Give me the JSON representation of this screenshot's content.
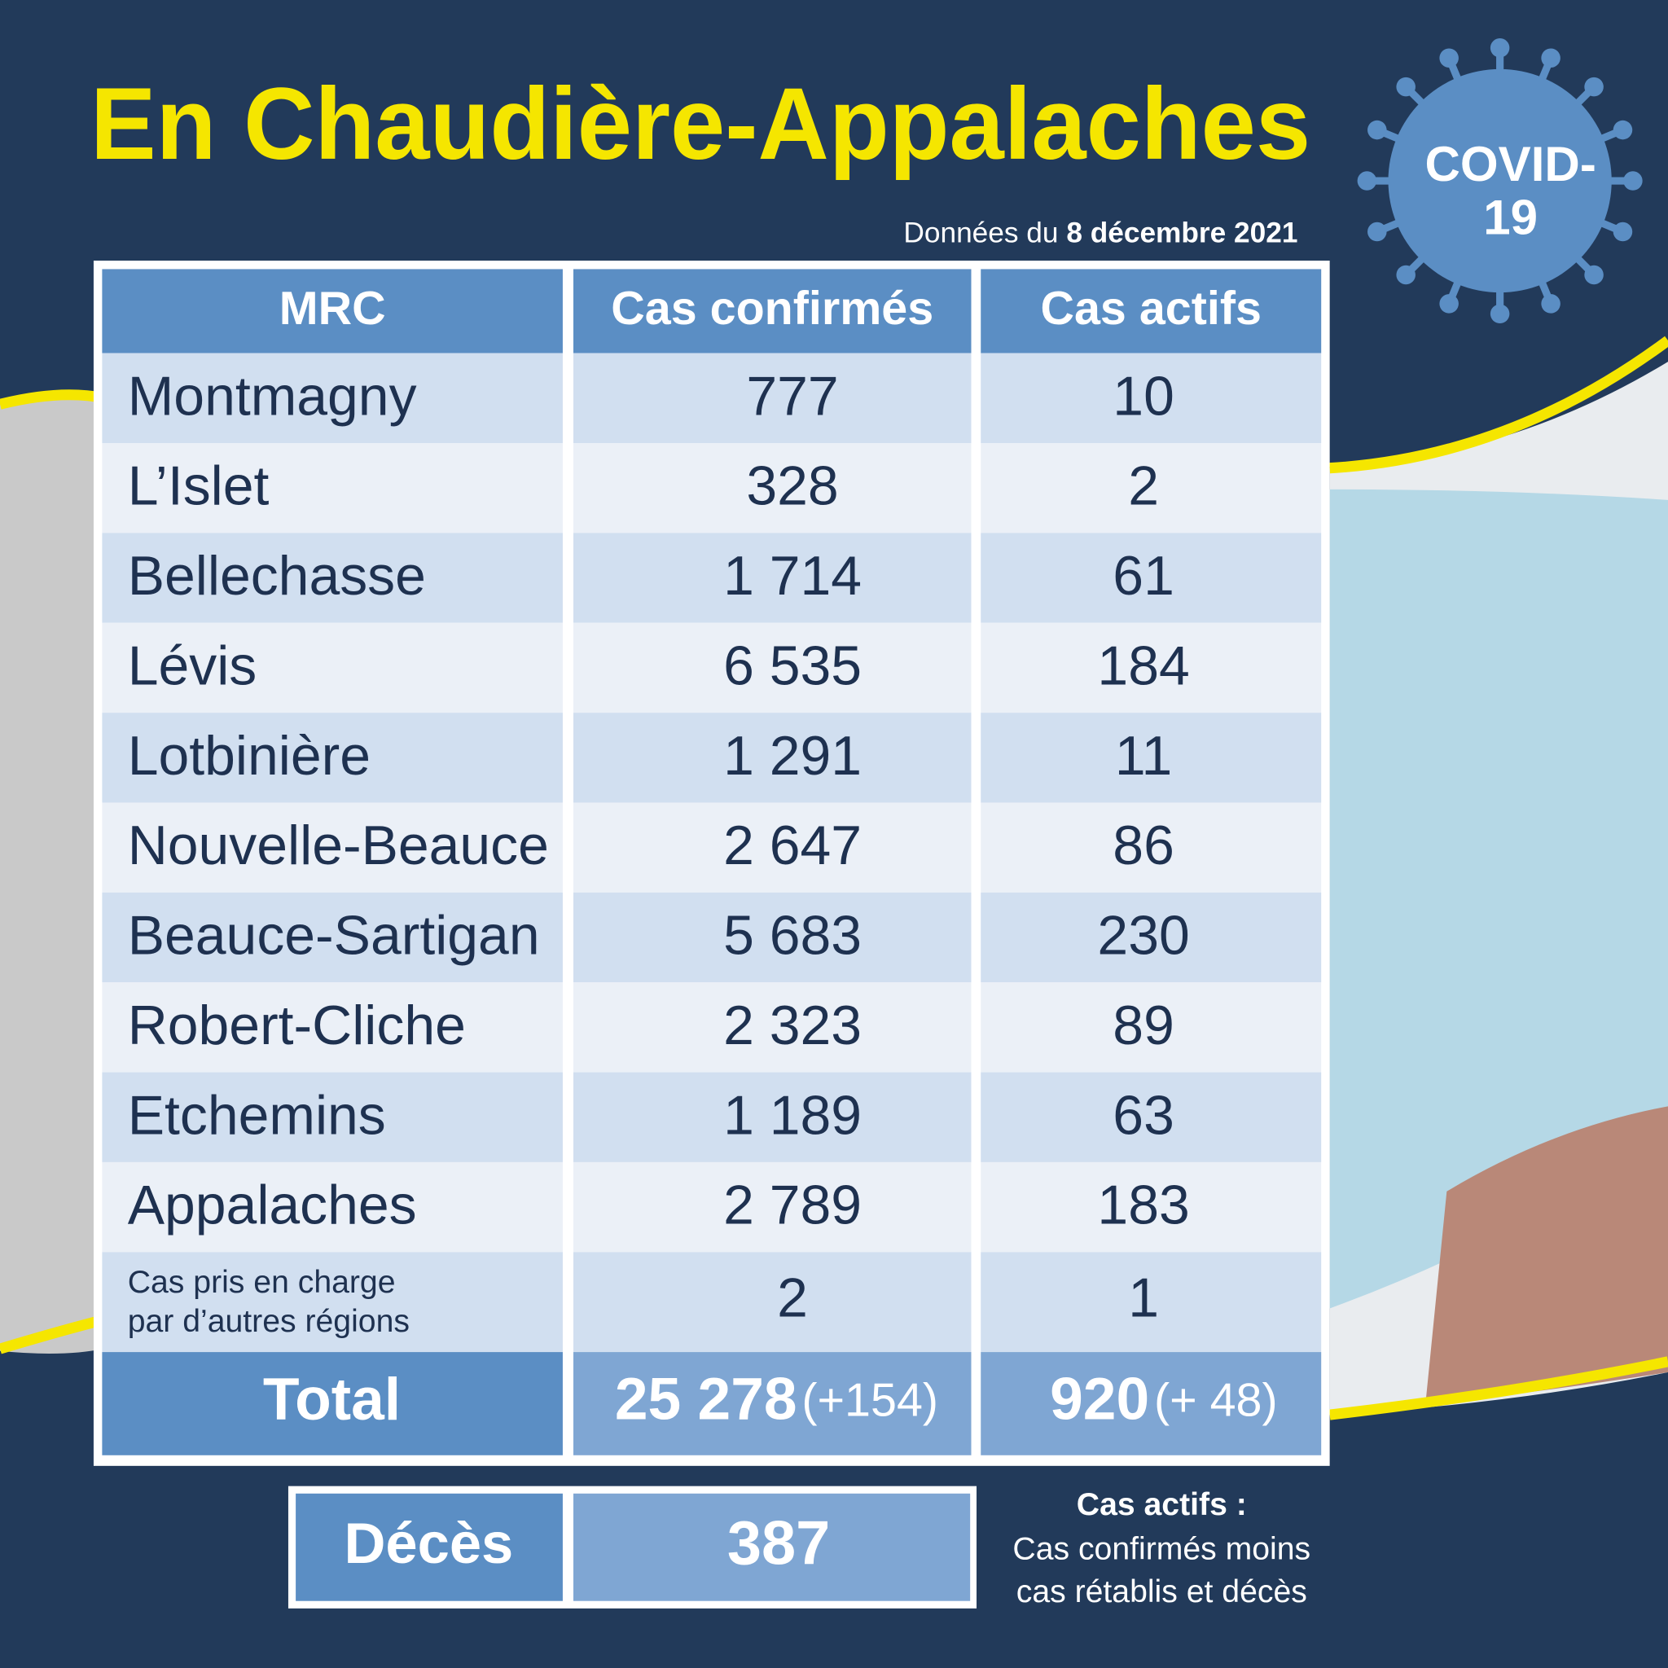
{
  "header": {
    "title": "En Chaudière-Appalaches",
    "date_prefix": "Données du",
    "date": "8 décembre 2021"
  },
  "badge": {
    "lines": [
      "COVID-",
      "19"
    ]
  },
  "table": {
    "headers": [
      "MRC",
      "Cas confirmés",
      "Cas actifs"
    ],
    "rows": [
      [
        "Montmagny",
        "777",
        "10"
      ],
      [
        "L’Islet",
        "328",
        "2"
      ],
      [
        "Bellechasse",
        "1 714",
        "61"
      ],
      [
        "Lévis",
        "6 535",
        "184"
      ],
      [
        "Lotbinière",
        "1 291",
        "11"
      ],
      [
        "Nouvelle-Beauce",
        "2 647",
        "86"
      ],
      [
        "Beauce-Sartigan",
        "5 683",
        "230"
      ],
      [
        "Robert-Cliche",
        "2 323",
        "89"
      ],
      [
        "Etchemins",
        "1 189",
        "63"
      ],
      [
        "Appalaches",
        "2 789",
        "183"
      ]
    ],
    "other_regions": {
      "label_lines": [
        "Cas pris en charge",
        "par d’autres régions"
      ],
      "confirmed": "2",
      "active": "1"
    },
    "total": {
      "label": "Total",
      "confirmed": "25 278",
      "confirmed_change": "(+154)",
      "active": "920",
      "active_change": "(+ 48)"
    }
  },
  "deaths": {
    "label": "Décès",
    "value": "387"
  },
  "note": {
    "title": "Cas actifs :",
    "lines": [
      "Cas confirmés moins",
      "cas rétablis et décès"
    ]
  }
}
